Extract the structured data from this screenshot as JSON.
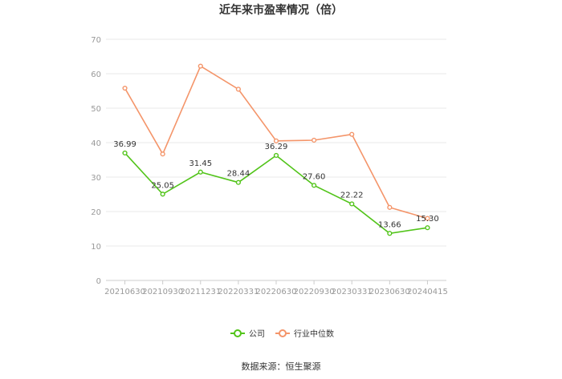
{
  "chart_data": {
    "type": "line",
    "title": "近年来市盈率情况（倍）",
    "source": "数据来源：恒生聚源",
    "categories": [
      "20210630",
      "20210930",
      "20211231",
      "20220331",
      "20220630",
      "20220930",
      "20230331",
      "20230630",
      "20240415"
    ],
    "ylim": [
      0,
      70
    ],
    "yticks": [
      0,
      10,
      20,
      30,
      40,
      50,
      60,
      70
    ],
    "grid": true,
    "legend_position": "bottom",
    "series": [
      {
        "name": "公司",
        "color": "#52c41a",
        "values": [
          36.99,
          25.05,
          31.45,
          28.44,
          36.29,
          27.6,
          22.22,
          13.66,
          15.3
        ],
        "labels": [
          "36.99",
          "25.05",
          "31.45",
          "28.44",
          "36.29",
          "27.60",
          "22.22",
          "13.66",
          "15.30"
        ]
      },
      {
        "name": "行业中位数",
        "color": "#f4956a",
        "values": [
          55.8,
          36.7,
          62.2,
          55.5,
          40.5,
          40.7,
          42.4,
          21.2,
          18.0
        ]
      }
    ]
  }
}
